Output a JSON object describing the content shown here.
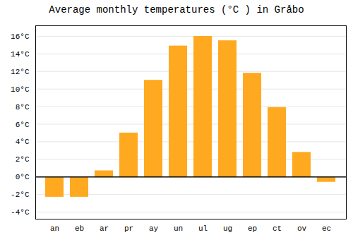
{
  "chart_data": {
    "type": "bar",
    "title": "Average monthly temperatures (°C ) in Gråbo",
    "categories": [
      "an",
      "eb",
      "ar",
      "pr",
      "ay",
      "un",
      "ul",
      "ug",
      "ep",
      "ct",
      "ov",
      "ec"
    ],
    "values": [
      -2.3,
      -2.3,
      0.7,
      5.0,
      11.0,
      14.9,
      16.0,
      15.5,
      11.8,
      7.9,
      2.8,
      -0.6
    ],
    "color": "#FFA920",
    "ylim": [
      -4.8,
      17.2
    ],
    "yticks": [
      {
        "value": -4,
        "label": "-4°C"
      },
      {
        "value": -2,
        "label": "-2°C"
      },
      {
        "value": 0,
        "label": "0°C"
      },
      {
        "value": 2,
        "label": "2°C"
      },
      {
        "value": 4,
        "label": "4°C"
      },
      {
        "value": 6,
        "label": "6°C"
      },
      {
        "value": 8,
        "label": "8°C"
      },
      {
        "value": 10,
        "label": "10°C"
      },
      {
        "value": 12,
        "label": "12°C"
      },
      {
        "value": 14,
        "label": "14°C"
      },
      {
        "value": 16,
        "label": "16°C"
      }
    ],
    "grid": true
  }
}
